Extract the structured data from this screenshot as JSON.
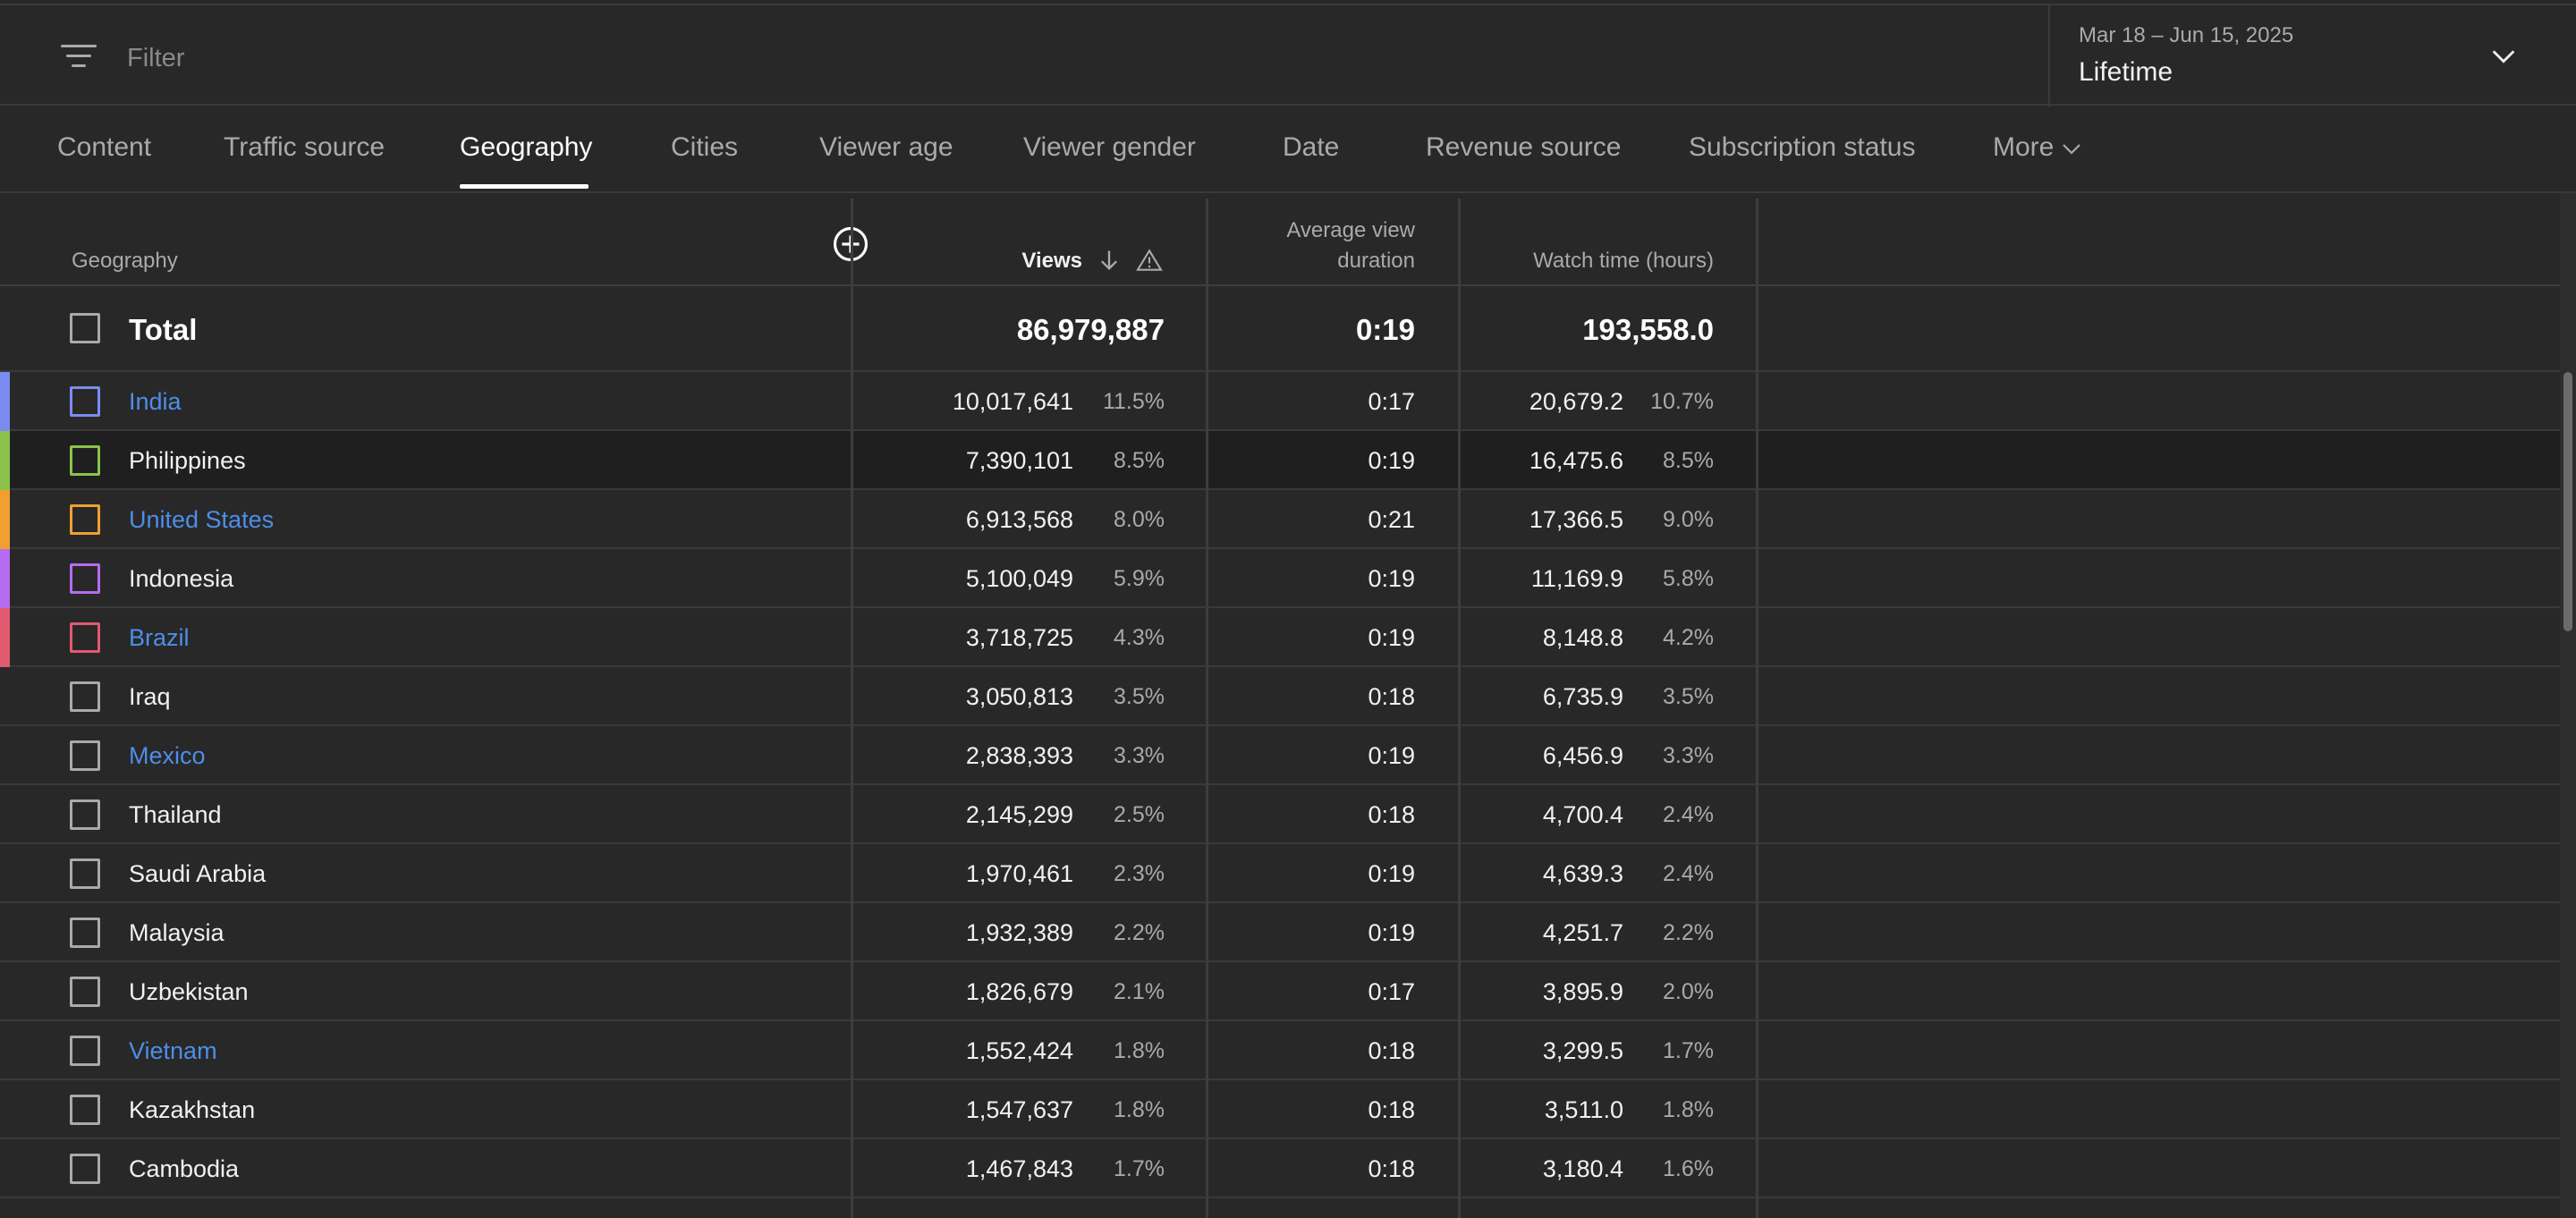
{
  "filter": {
    "placeholder": "Filter"
  },
  "date": {
    "range": "Mar 18 – Jun 15, 2025",
    "value": "Lifetime"
  },
  "tabs": [
    {
      "label": "Content"
    },
    {
      "label": "Traffic source"
    },
    {
      "label": "Geography",
      "active": true
    },
    {
      "label": "Cities"
    },
    {
      "label": "Viewer age"
    },
    {
      "label": "Viewer gender"
    },
    {
      "label": "Date"
    },
    {
      "label": "Revenue source"
    },
    {
      "label": "Subscription status"
    },
    {
      "label": "More"
    }
  ],
  "table": {
    "headers": {
      "geography": "Geography",
      "views": "Views",
      "avg_line1": "Average view",
      "avg_line2": "duration",
      "watch": "Watch time (hours)"
    },
    "total": {
      "label": "Total",
      "views": "86,979,887",
      "avg": "0:19",
      "watch": "193,558.0"
    },
    "rows": [
      {
        "country": "India",
        "views": "10,017,641",
        "views_pct": "11.5%",
        "avg": "0:17",
        "watch": "20,679.2",
        "watch_pct": "10.7%",
        "link": true,
        "color": "#7b8cf0"
      },
      {
        "country": "Philippines",
        "views": "7,390,101",
        "views_pct": "8.5%",
        "avg": "0:19",
        "watch": "16,475.6",
        "watch_pct": "8.5%",
        "link": false,
        "color": "#8bc34a"
      },
      {
        "country": "United States",
        "views": "6,913,568",
        "views_pct": "8.0%",
        "avg": "0:21",
        "watch": "17,366.5",
        "watch_pct": "9.0%",
        "link": true,
        "color": "#f0a030"
      },
      {
        "country": "Indonesia",
        "views": "5,100,049",
        "views_pct": "5.9%",
        "avg": "0:19",
        "watch": "11,169.9",
        "watch_pct": "5.8%",
        "link": false,
        "color": "#b56cf0"
      },
      {
        "country": "Brazil",
        "views": "3,718,725",
        "views_pct": "4.3%",
        "avg": "0:19",
        "watch": "8,148.8",
        "watch_pct": "4.2%",
        "link": true,
        "color": "#e05a70"
      },
      {
        "country": "Iraq",
        "views": "3,050,813",
        "views_pct": "3.5%",
        "avg": "0:18",
        "watch": "6,735.9",
        "watch_pct": "3.5%",
        "link": false,
        "color": ""
      },
      {
        "country": "Mexico",
        "views": "2,838,393",
        "views_pct": "3.3%",
        "avg": "0:19",
        "watch": "6,456.9",
        "watch_pct": "3.3%",
        "link": true,
        "color": ""
      },
      {
        "country": "Thailand",
        "views": "2,145,299",
        "views_pct": "2.5%",
        "avg": "0:18",
        "watch": "4,700.4",
        "watch_pct": "2.4%",
        "link": false,
        "color": ""
      },
      {
        "country": "Saudi Arabia",
        "views": "1,970,461",
        "views_pct": "2.3%",
        "avg": "0:19",
        "watch": "4,639.3",
        "watch_pct": "2.4%",
        "link": false,
        "color": ""
      },
      {
        "country": "Malaysia",
        "views": "1,932,389",
        "views_pct": "2.2%",
        "avg": "0:19",
        "watch": "4,251.7",
        "watch_pct": "2.2%",
        "link": false,
        "color": ""
      },
      {
        "country": "Uzbekistan",
        "views": "1,826,679",
        "views_pct": "2.1%",
        "avg": "0:17",
        "watch": "3,895.9",
        "watch_pct": "2.0%",
        "link": false,
        "color": ""
      },
      {
        "country": "Vietnam",
        "views": "1,552,424",
        "views_pct": "1.8%",
        "avg": "0:18",
        "watch": "3,299.5",
        "watch_pct": "1.7%",
        "link": true,
        "color": ""
      },
      {
        "country": "Kazakhstan",
        "views": "1,547,637",
        "views_pct": "1.8%",
        "avg": "0:18",
        "watch": "3,511.0",
        "watch_pct": "1.8%",
        "link": false,
        "color": ""
      },
      {
        "country": "Cambodia",
        "views": "1,467,843",
        "views_pct": "1.7%",
        "avg": "0:18",
        "watch": "3,180.4",
        "watch_pct": "1.6%",
        "link": false,
        "color": ""
      }
    ]
  }
}
